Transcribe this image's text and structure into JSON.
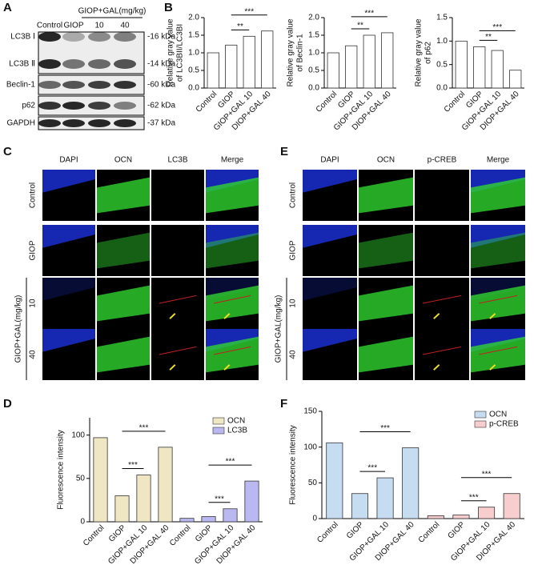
{
  "panel_labels": [
    "A",
    "B",
    "C",
    "D",
    "E",
    "F"
  ],
  "blot": {
    "header": "GIOP+GAL(mg/kg)",
    "columns": [
      "Control",
      "GIOP",
      "10",
      "40"
    ],
    "rows": [
      "LC3B Ⅰ",
      "LC3B Ⅱ",
      "Beclin-1",
      "p62",
      "GAPDH"
    ],
    "sizes": [
      "-16 kDa",
      "-14 kDa",
      "-60 kDa",
      "-62 kDa",
      "-37 kDa"
    ]
  },
  "image_grids": [
    {
      "columns": [
        "DAPI",
        "OCN",
        "LC3B",
        "Merge"
      ],
      "rows": [
        "Control",
        "GIOP",
        "10",
        "40"
      ],
      "group_label": "GIOP+GAL(mg/kg)"
    },
    {
      "columns": [
        "DAPI",
        "OCN",
        "p-CREB",
        "Merge"
      ],
      "rows": [
        "Control",
        "GIOP",
        "10",
        "40"
      ],
      "group_label": "GIOP+GAL(mg/kg)"
    }
  ],
  "chart_data": [
    {
      "type": "bar",
      "ylabel": [
        "Relative gray value",
        "of LC3BII/LC3BI"
      ],
      "categories": [
        "Control",
        "GIOP",
        "GIOP+GAL 10",
        "DIOP+GAL 40"
      ],
      "values": [
        1.0,
        1.22,
        1.47,
        1.62
      ],
      "color": "#ffffff",
      "ylim": [
        0,
        2
      ],
      "yticks": [
        {
          "value": 0,
          "label": "0.0"
        },
        0.5,
        {
          "value": 1,
          "label": "1.0"
        },
        1.5,
        {
          "value": 2,
          "label": "2.0"
        }
      ],
      "annotations": [
        "**",
        "***"
      ]
    },
    {
      "type": "bar",
      "ylabel": [
        "Relative gray value",
        "of Beclin-1"
      ],
      "categories": [
        "Control",
        "GIOP",
        "GIOP+GAL 10",
        "DIOP+GAL 40"
      ],
      "values": [
        1.0,
        1.2,
        1.5,
        1.57
      ],
      "color": "#ffffff",
      "ylim": [
        0,
        2
      ],
      "yticks": [
        {
          "value": 0,
          "label": "0.0"
        },
        0.5,
        {
          "value": 1,
          "label": "1.0"
        },
        1.5,
        {
          "value": 2,
          "label": "2.0"
        }
      ],
      "annotations": [
        "**",
        "***"
      ]
    },
    {
      "type": "bar",
      "ylabel": [
        "Relative gray value",
        "of p62"
      ],
      "categories": [
        "Control",
        "GIOP",
        "GIOP+GAL 10",
        "DIOP+GAL 40"
      ],
      "values": [
        1.0,
        0.88,
        0.8,
        0.38
      ],
      "color": "#ffffff",
      "ylim": [
        0,
        1.5
      ],
      "yticks": [
        {
          "value": 0,
          "label": "0.0"
        },
        0.5,
        {
          "value": 1,
          "label": "1.0"
        },
        1.5
      ],
      "annotations": [
        "**",
        "***"
      ]
    },
    {
      "type": "bar",
      "ylabel": "Fluorescence intensity",
      "categories": [
        "Control",
        "GIOP",
        "GIOP+GAL 10",
        "DIOP+GAL 40",
        "Control",
        "GIOP",
        "GIOP+GAL 10",
        "DIOP+GAL 40"
      ],
      "series": [
        {
          "name": "OCN",
          "color": "#efe6c4",
          "values": [
            97,
            30,
            54,
            86,
            null,
            null,
            null,
            null
          ]
        },
        {
          "name": "LC3B",
          "color": "#b9b8f0",
          "values": [
            null,
            null,
            null,
            null,
            4,
            6,
            15,
            47
          ]
        }
      ],
      "ylim": [
        0,
        120
      ],
      "yticks": [
        0,
        50,
        100
      ],
      "legend": "upper right",
      "annotations": [
        "***",
        "***",
        "***",
        "***"
      ]
    },
    {
      "type": "bar",
      "ylabel": "Fluorescence intensity",
      "categories": [
        "Control",
        "GIOP",
        "GIOP+GAL 10",
        "DIOP+GAL 40",
        "Control",
        "GIOP",
        "GIOP+GAL 10",
        "DIOP+GAL 40"
      ],
      "series": [
        {
          "name": "OCN",
          "color": "#c6dcf1",
          "values": [
            106,
            35,
            57,
            99,
            null,
            null,
            null,
            null
          ]
        },
        {
          "name": "p-CREB",
          "color": "#f8cdcd",
          "values": [
            null,
            null,
            null,
            null,
            4,
            5,
            16,
            35
          ]
        }
      ],
      "ylim": [
        0,
        150
      ],
      "yticks": [
        0,
        50,
        100,
        150
      ],
      "legend": "upper right",
      "annotations": [
        "***",
        "***",
        "***",
        "***"
      ]
    }
  ]
}
